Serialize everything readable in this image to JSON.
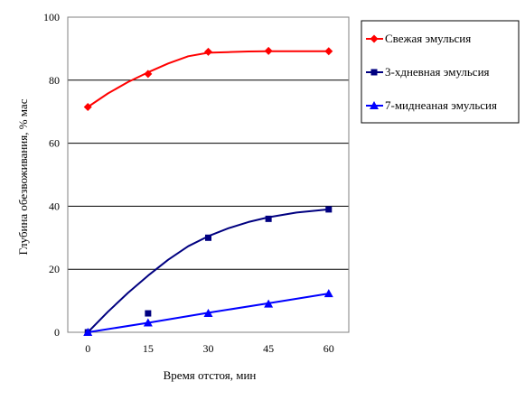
{
  "chart_data": {
    "type": "line",
    "title": "",
    "xlabel": "Время отстоя, мин",
    "ylabel": "Глубина обезвоживания, %  мас",
    "x": [
      0,
      15,
      30,
      45,
      60
    ],
    "xlim": [
      -5,
      65
    ],
    "ylim": [
      0,
      100
    ],
    "yticks": [
      0,
      20,
      40,
      60,
      80,
      100
    ],
    "grid": "horizontal",
    "legend_position": "right",
    "series": [
      {
        "name": "Свежая эмульсия",
        "color": "#FF0000",
        "marker": "diamond",
        "points": [
          [
            0,
            71.5
          ],
          [
            15,
            82
          ],
          [
            30,
            89
          ],
          [
            45,
            89.3
          ],
          [
            60,
            89.2
          ]
        ],
        "trend": [
          [
            0,
            71.5
          ],
          [
            5,
            75.8
          ],
          [
            10,
            79.4
          ],
          [
            15,
            82.5
          ],
          [
            20,
            85.3
          ],
          [
            25,
            87.6
          ],
          [
            30,
            88.7
          ],
          [
            35,
            88.9
          ],
          [
            40,
            89.1
          ],
          [
            45,
            89.2
          ],
          [
            52,
            89.2
          ],
          [
            60,
            89.2
          ]
        ]
      },
      {
        "name": "3-хдневная эмульсия",
        "color": "#000080",
        "marker": "square",
        "points": [
          [
            0,
            0
          ],
          [
            15,
            6
          ],
          [
            30,
            30
          ],
          [
            45,
            36
          ],
          [
            60,
            39
          ]
        ],
        "trend": [
          [
            0,
            0
          ],
          [
            5,
            6.5
          ],
          [
            10,
            12.5
          ],
          [
            15,
            18
          ],
          [
            20,
            23
          ],
          [
            25,
            27.3
          ],
          [
            30,
            30.5
          ],
          [
            35,
            33
          ],
          [
            40,
            35
          ],
          [
            45,
            36.5
          ],
          [
            52,
            38
          ],
          [
            60,
            39
          ]
        ]
      },
      {
        "name": "7-миднеаная эмульсия",
        "color": "#0000FF",
        "marker": "triangle",
        "points": [
          [
            0,
            0
          ],
          [
            15,
            3
          ],
          [
            30,
            6
          ],
          [
            45,
            9
          ],
          [
            60,
            12.3
          ]
        ],
        "trend": [
          [
            0,
            0
          ],
          [
            15,
            3
          ],
          [
            30,
            6.2
          ],
          [
            45,
            9.2
          ],
          [
            60,
            12.3
          ]
        ]
      }
    ]
  }
}
